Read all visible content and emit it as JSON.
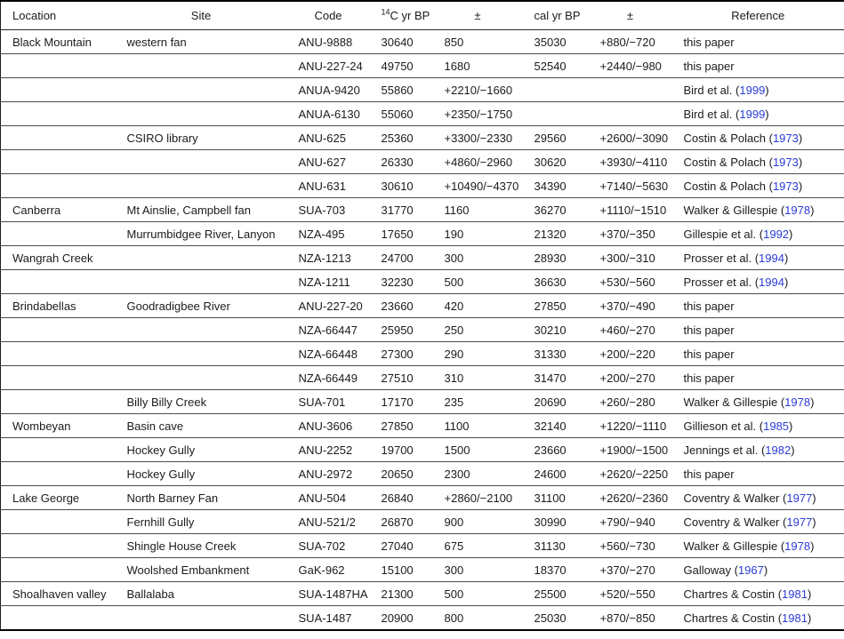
{
  "colors": {
    "link_blue": "#2b3bd6",
    "text": "#1b1b1b",
    "rule": "#4d4d4d"
  },
  "table": {
    "columns": [
      {
        "key": "location",
        "label": "Location"
      },
      {
        "key": "site",
        "label": "Site"
      },
      {
        "key": "code",
        "label": "Code"
      },
      {
        "key": "c14",
        "sup": "14",
        "label": "C yr BP"
      },
      {
        "key": "pm1",
        "label": "±"
      },
      {
        "key": "cal",
        "label": "cal yr BP"
      },
      {
        "key": "pm2",
        "label": "±"
      },
      {
        "key": "reference",
        "label": "Reference"
      }
    ],
    "rows": [
      {
        "cells": [
          "Black Mountain",
          "western fan",
          "ANU-9888",
          "30640",
          "850",
          "35030",
          "+880/−720"
        ],
        "ref": {
          "t": "this paper",
          "y": null
        }
      },
      {
        "cells": [
          "",
          "",
          "ANU-227-24",
          "49750",
          "1680",
          "52540",
          "+2440/−980"
        ],
        "ref": {
          "t": "this paper",
          "y": null
        }
      },
      {
        "cells": [
          "",
          "",
          "ANUA-9420",
          "55860",
          "+2210/−1660",
          "",
          ""
        ],
        "ref": {
          "t": "Bird et al.",
          "y": "1999"
        }
      },
      {
        "cells": [
          "",
          "",
          "ANUA-6130",
          "55060",
          "+2350/−1750",
          "",
          ""
        ],
        "ref": {
          "t": "Bird et al.",
          "y": "1999"
        }
      },
      {
        "cells": [
          "",
          "CSIRO library",
          "ANU-625",
          "25360",
          "+3300/−2330",
          "29560",
          "+2600/−3090"
        ],
        "ref": {
          "t": "Costin & Polach",
          "y": "1973"
        }
      },
      {
        "cells": [
          "",
          "",
          "ANU-627",
          "26330",
          "+4860/−2960",
          "30620",
          "+3930/−4110"
        ],
        "ref": {
          "t": "Costin & Polach",
          "y": "1973"
        }
      },
      {
        "cells": [
          "",
          "",
          "ANU-631",
          "30610",
          "+10490/−4370",
          "34390",
          "+7140/−5630"
        ],
        "ref": {
          "t": "Costin & Polach",
          "y": "1973"
        }
      },
      {
        "cells": [
          "Canberra",
          "Mt Ainslie, Campbell fan",
          "SUA-703",
          "31770",
          "1160",
          "36270",
          "+1110/−1510"
        ],
        "ref": {
          "t": "Walker & Gillespie",
          "y": "1978"
        }
      },
      {
        "cells": [
          "",
          "Murrumbidgee River, Lanyon",
          "NZA-495",
          "17650",
          "190",
          "21320",
          "+370/−350"
        ],
        "ref": {
          "t": "Gillespie et al.",
          "y": "1992"
        }
      },
      {
        "cells": [
          "Wangrah Creek",
          "",
          "NZA-1213",
          "24700",
          "300",
          "28930",
          "+300/−310"
        ],
        "ref": {
          "t": "Prosser et al.",
          "y": "1994"
        }
      },
      {
        "cells": [
          "",
          "",
          "NZA-1211",
          "32230",
          "500",
          "36630",
          "+530/−560"
        ],
        "ref": {
          "t": "Prosser et al.",
          "y": "1994"
        }
      },
      {
        "cells": [
          "Brindabellas",
          "Goodradigbee River",
          "ANU-227-20",
          "23660",
          "420",
          "27850",
          "+370/−490"
        ],
        "ref": {
          "t": "this paper",
          "y": null
        }
      },
      {
        "cells": [
          "",
          "",
          "NZA-66447",
          "25950",
          "250",
          "30210",
          "+460/−270"
        ],
        "ref": {
          "t": "this paper",
          "y": null
        }
      },
      {
        "cells": [
          "",
          "",
          "NZA-66448",
          "27300",
          "290",
          "31330",
          "+200/−220"
        ],
        "ref": {
          "t": "this paper",
          "y": null
        }
      },
      {
        "cells": [
          "",
          "",
          "NZA-66449",
          "27510",
          "310",
          "31470",
          "+200/−270"
        ],
        "ref": {
          "t": "this paper",
          "y": null
        }
      },
      {
        "cells": [
          "",
          "Billy Billy Creek",
          "SUA-701",
          "17170",
          "235",
          "20690",
          "+260/−280"
        ],
        "ref": {
          "t": "Walker & Gillespie",
          "y": "1978"
        }
      },
      {
        "cells": [
          "Wombeyan",
          "Basin cave",
          "ANU-3606",
          "27850",
          "1100",
          "32140",
          "+1220/−1110"
        ],
        "ref": {
          "t": "Gillieson et al.",
          "y": "1985"
        }
      },
      {
        "cells": [
          "",
          "Hockey Gully",
          "ANU-2252",
          "19700",
          "1500",
          "23660",
          "+1900/−1500"
        ],
        "ref": {
          "t": "Jennings et al.",
          "y": "1982"
        }
      },
      {
        "cells": [
          "",
          "Hockey Gully",
          "ANU-2972",
          "20650",
          "2300",
          "24600",
          "+2620/−2250"
        ],
        "ref": {
          "t": "this paper",
          "y": null
        }
      },
      {
        "cells": [
          "Lake George",
          "North Barney Fan",
          "ANU-504",
          "26840",
          "+2860/−2100",
          "31100",
          "+2620/−2360"
        ],
        "ref": {
          "t": "Coventry & Walker",
          "y": "1977"
        }
      },
      {
        "cells": [
          "",
          "Fernhill Gully",
          "ANU-521/2",
          "26870",
          "900",
          "30990",
          "+790/−940"
        ],
        "ref": {
          "t": "Coventry & Walker",
          "y": "1977"
        }
      },
      {
        "cells": [
          "",
          "Shingle House Creek",
          "SUA-702",
          "27040",
          "675",
          "31130",
          "+560/−730"
        ],
        "ref": {
          "t": "Walker & Gillespie",
          "y": "1978"
        }
      },
      {
        "cells": [
          "",
          "Woolshed Embankment",
          "GaK-962",
          "15100",
          "300",
          "18370",
          "+370/−270"
        ],
        "ref": {
          "t": "Galloway",
          "y": "1967"
        }
      },
      {
        "cells": [
          "Shoalhaven valley",
          "Ballalaba",
          "SUA-1487HA",
          "21300",
          "500",
          "25500",
          "+520/−550"
        ],
        "ref": {
          "t": "Chartres & Costin",
          "y": "1981"
        }
      },
      {
        "cells": [
          "",
          "",
          "SUA-1487",
          "20900",
          "800",
          "25030",
          "+870/−850"
        ],
        "ref": {
          "t": "Chartres & Costin",
          "y": "1981"
        }
      }
    ]
  }
}
